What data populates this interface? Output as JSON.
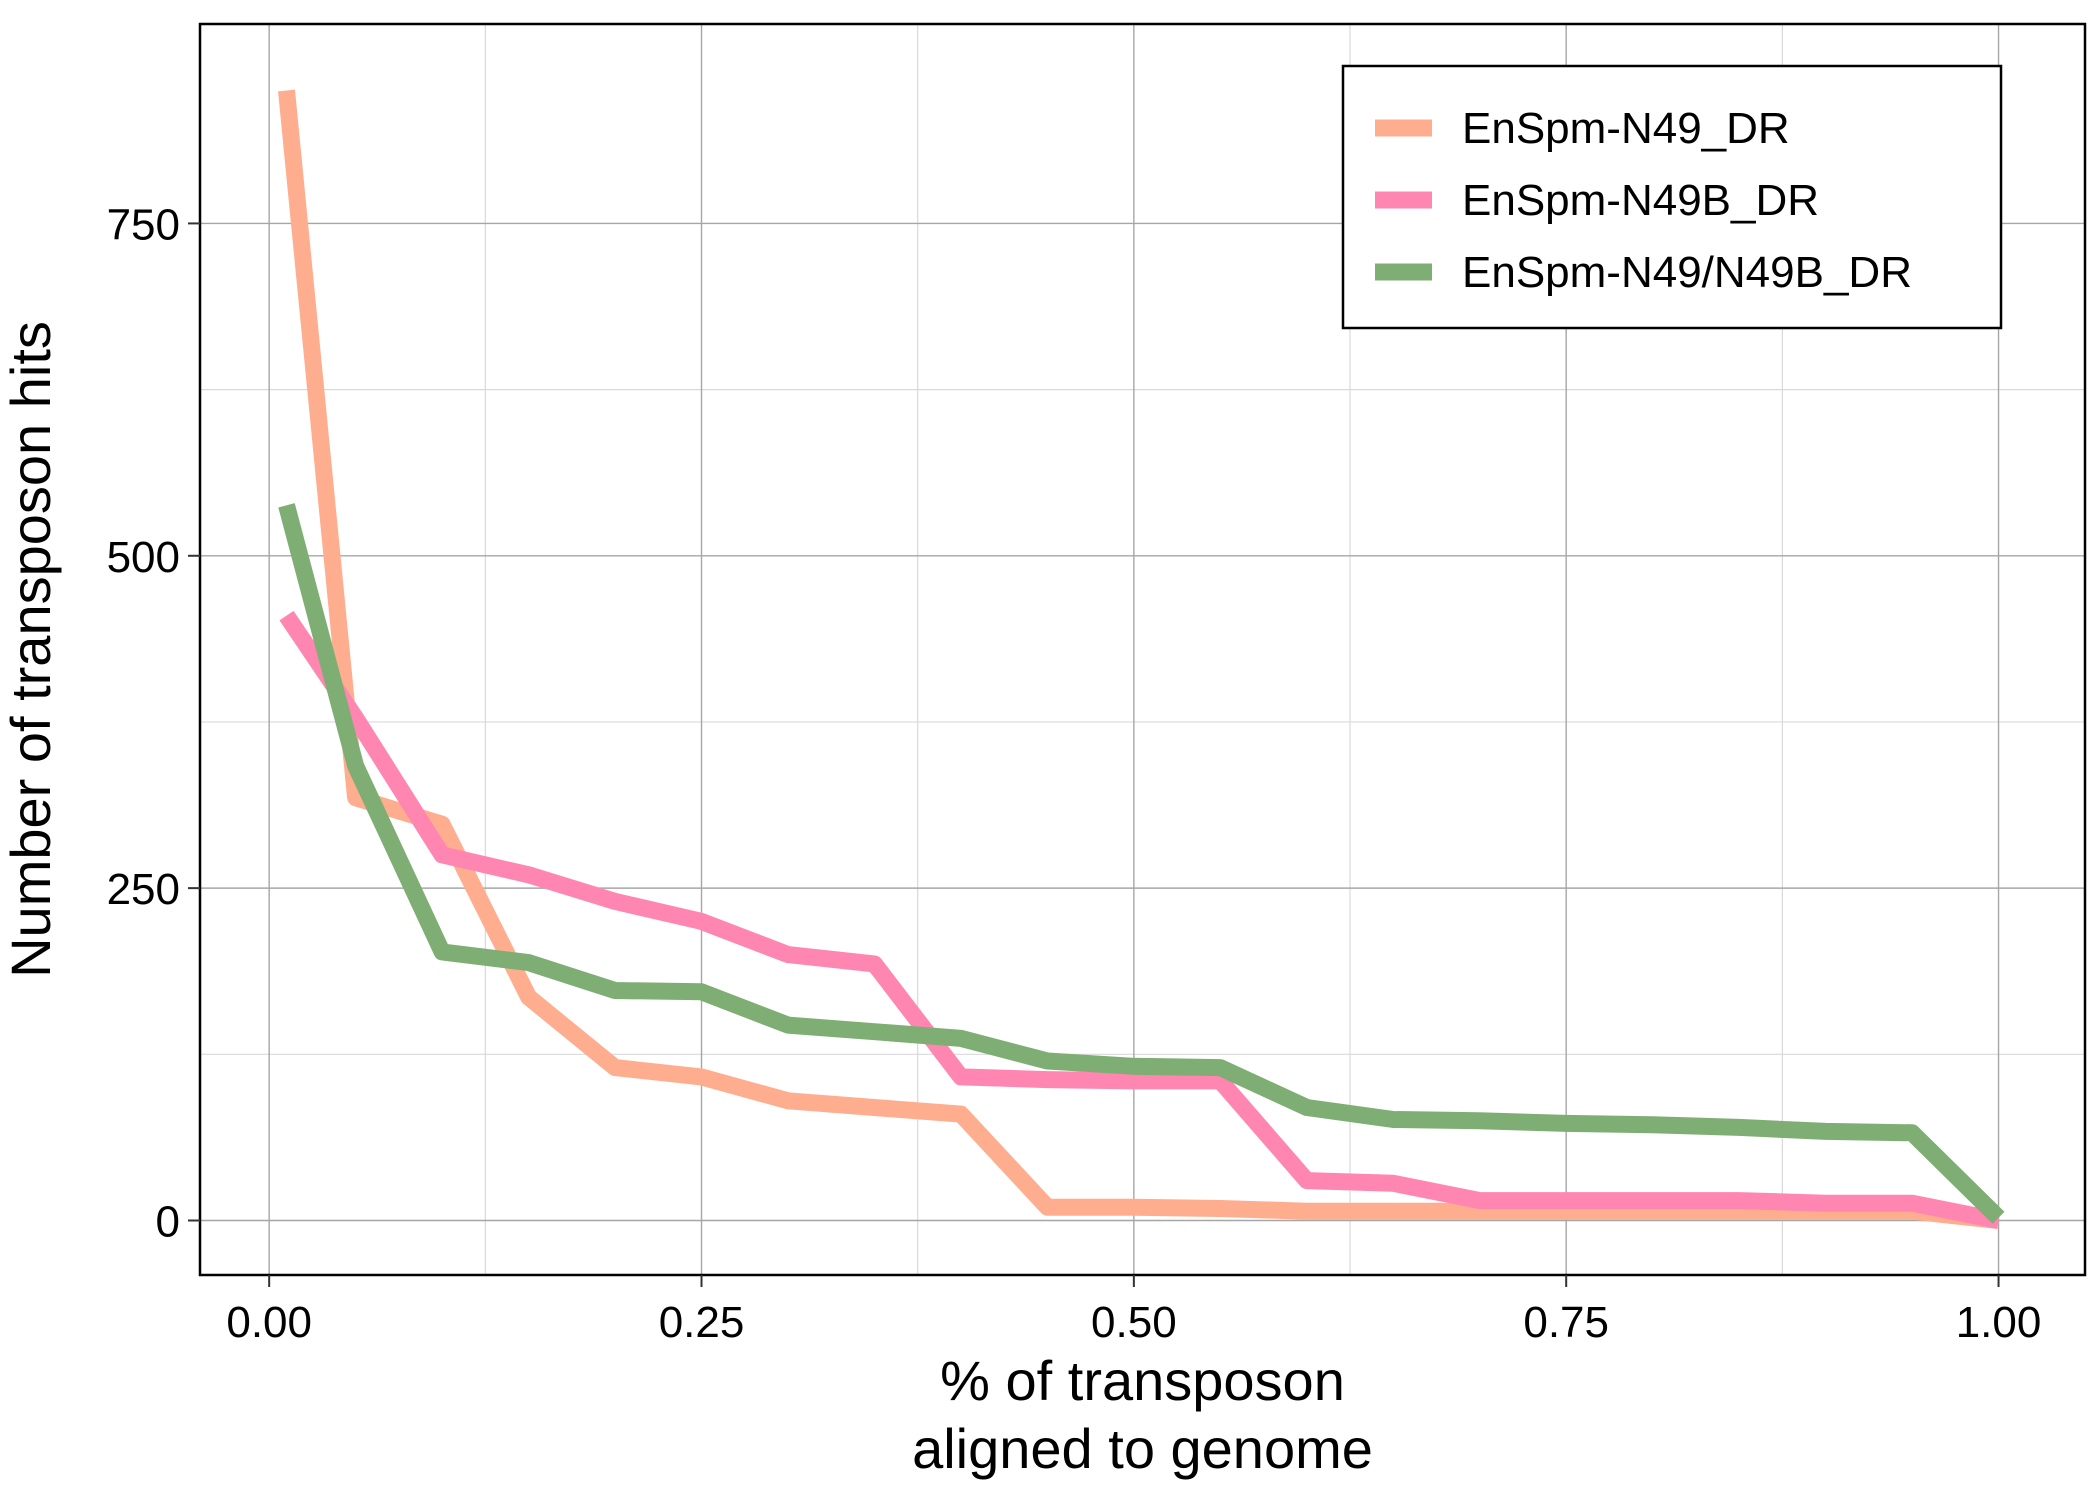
{
  "chart_data": {
    "type": "line",
    "title": "",
    "xlabel_lines": [
      "% of transposon",
      "aligned to genome"
    ],
    "ylabel": "Number of transposon hits",
    "xlim": [
      -0.04,
      1.05
    ],
    "ylim": [
      -41,
      900
    ],
    "x_ticks": [
      0,
      0.25,
      0.5,
      0.75,
      1.0
    ],
    "x_tick_labels": [
      "0.00",
      "0.25",
      "0.50",
      "0.75",
      "1.00"
    ],
    "x_minor_ticks": [
      0.125,
      0.375,
      0.625,
      0.875
    ],
    "y_ticks": [
      0,
      250,
      500,
      750
    ],
    "y_tick_labels": [
      "0",
      "250",
      "500",
      "750"
    ],
    "y_minor_ticks": [
      125,
      375,
      625
    ],
    "grid": true,
    "legend_position": "top-right",
    "series": [
      {
        "name": "EnSpm-N49_DR",
        "color": "#FFAD8F",
        "x": [
          0.01,
          0.05,
          0.1,
          0.15,
          0.2,
          0.25,
          0.3,
          0.35,
          0.4,
          0.45,
          0.5,
          0.55,
          0.6,
          0.65,
          0.7,
          0.75,
          0.8,
          0.85,
          0.9,
          0.95,
          1.0
        ],
        "y": [
          850,
          318,
          298,
          168,
          115,
          108,
          90,
          85,
          80,
          10,
          10,
          9,
          7,
          7,
          7,
          7,
          7,
          7,
          7,
          7,
          0
        ]
      },
      {
        "name": "EnSpm-N49B_DR",
        "color": "#FF86B1",
        "x": [
          0.01,
          0.05,
          0.1,
          0.15,
          0.2,
          0.25,
          0.3,
          0.35,
          0.4,
          0.45,
          0.5,
          0.55,
          0.6,
          0.65,
          0.7,
          0.75,
          0.8,
          0.85,
          0.9,
          0.95,
          1.0
        ],
        "y": [
          455,
          378,
          275,
          260,
          240,
          225,
          200,
          193,
          108,
          106,
          105,
          105,
          30,
          28,
          15,
          15,
          15,
          15,
          13,
          13,
          0
        ]
      },
      {
        "name": "EnSpm-N49/N49B_DR",
        "color": "#7FAE74",
        "x": [
          0.01,
          0.05,
          0.1,
          0.15,
          0.2,
          0.25,
          0.3,
          0.35,
          0.4,
          0.45,
          0.5,
          0.55,
          0.6,
          0.65,
          0.7,
          0.75,
          0.8,
          0.85,
          0.9,
          0.95,
          1.0
        ],
        "y": [
          538,
          342,
          202,
          194,
          173,
          172,
          147,
          142,
          137,
          120,
          116,
          115,
          85,
          76,
          75,
          73,
          72,
          70,
          67,
          66,
          2
        ]
      }
    ]
  }
}
